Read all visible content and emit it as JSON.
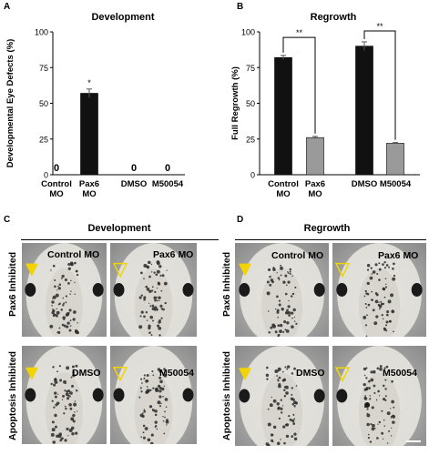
{
  "panels": {
    "a": {
      "letter": "A",
      "title": "Development"
    },
    "b": {
      "letter": "B",
      "title": "Regrowth"
    },
    "c": {
      "letter": "C",
      "title": "Development"
    },
    "d": {
      "letter": "D",
      "title": "Regrowth"
    }
  },
  "chart_data": [
    {
      "type": "bar",
      "title": "Development",
      "ylabel": "Developmental Eye Defects (%)",
      "ylim": [
        0,
        100
      ],
      "yticks": [
        0,
        25,
        50,
        75,
        100
      ],
      "categories": [
        [
          "Control",
          "MO"
        ],
        [
          "Pax6",
          "MO"
        ],
        [
          "DMSO"
        ],
        [
          "M50054"
        ]
      ],
      "values": [
        0,
        57,
        0,
        0
      ],
      "errors": [
        0,
        3,
        0,
        0
      ],
      "bar_colors": [
        "#111111",
        "#111111",
        "#111111",
        "#111111"
      ],
      "zero_labels": [
        "0",
        "",
        "0",
        "0"
      ],
      "significance": [
        {
          "index": 1,
          "text": "*"
        }
      ]
    },
    {
      "type": "bar",
      "title": "Regrowth",
      "ylabel": "Full Regrowth (%)",
      "ylim": [
        0,
        100
      ],
      "yticks": [
        0,
        25,
        50,
        75,
        100
      ],
      "categories": [
        [
          "Control",
          "MO"
        ],
        [
          "Pax6",
          "MO"
        ],
        [
          "DMSO"
        ],
        [
          "M50054"
        ]
      ],
      "values": [
        82,
        26,
        90,
        22
      ],
      "errors": [
        1.5,
        0.8,
        3,
        0.5
      ],
      "bar_colors": [
        "#111111",
        "#9a9a9a",
        "#111111",
        "#9a9a9a"
      ],
      "brackets": [
        {
          "from": 0,
          "to": 1,
          "text": "**"
        },
        {
          "from": 2,
          "to": 3,
          "text": "**"
        }
      ]
    }
  ],
  "images": {
    "c": {
      "row_labels": [
        "Pax6 Inhibited",
        "Apoptosis Inhibited"
      ],
      "tiles": [
        {
          "label": "Control MO",
          "arrow": "filled",
          "right_eye": true
        },
        {
          "label": "Pax6 MO",
          "arrow": "open",
          "right_eye": true
        },
        {
          "label": "DMSO",
          "arrow": "filled",
          "right_eye": true
        },
        {
          "label": "M50054",
          "arrow": "open",
          "right_eye": true
        }
      ]
    },
    "d": {
      "row_labels": [
        "Pax6 Inhibited",
        "Apoptosis Inhibited"
      ],
      "tiles": [
        {
          "label": "Control MO",
          "arrow": "filled",
          "right_eye": true
        },
        {
          "label": "Pax6 MO",
          "arrow": "open",
          "right_eye": true
        },
        {
          "label": "DMSO",
          "arrow": "filled",
          "right_eye": true
        },
        {
          "label": "M50054",
          "arrow": "open",
          "right_eye": true
        }
      ]
    }
  },
  "colors": {
    "bar_dark": "#111111",
    "bar_gray": "#9a9a9a",
    "arrow": "#f2d400",
    "photo_bg": "#8c8c8c"
  }
}
